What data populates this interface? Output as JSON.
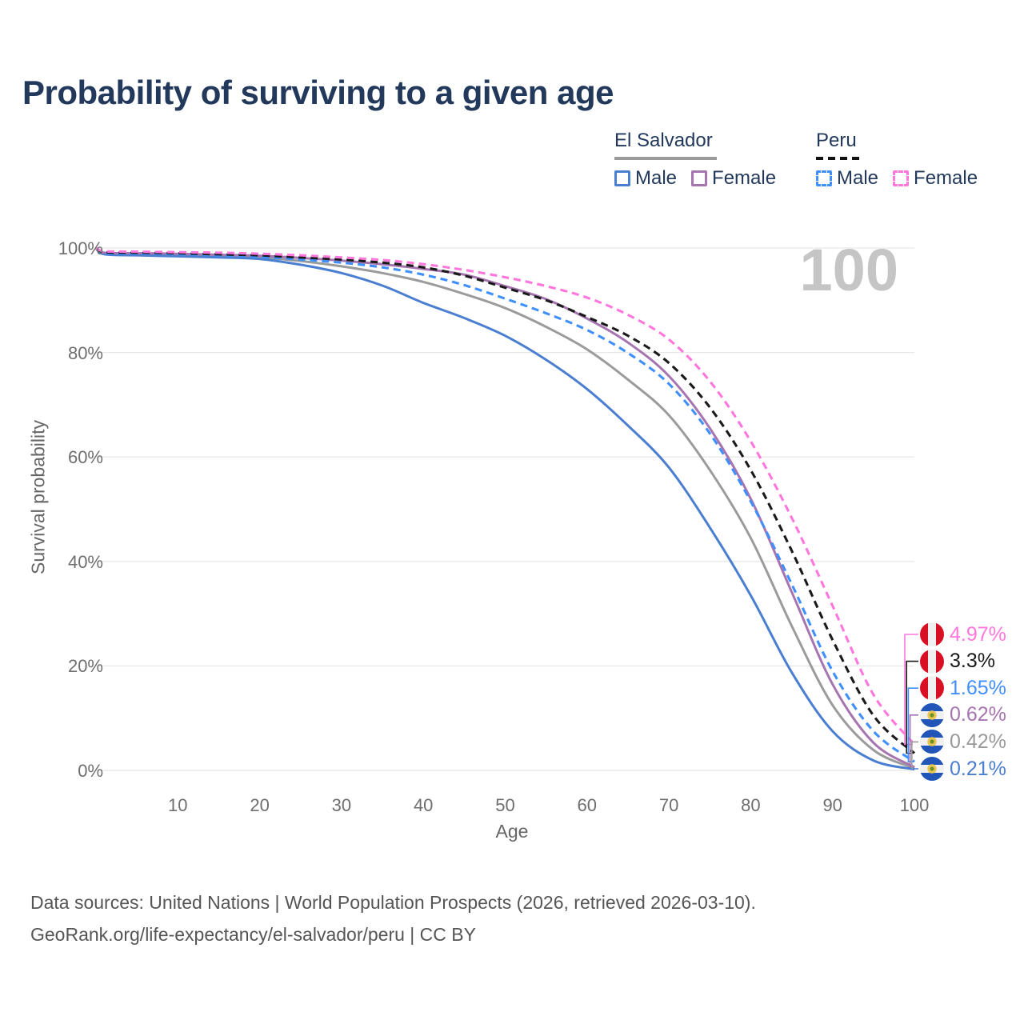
{
  "title": "Probability of surviving to a given age",
  "watermark_age": "100",
  "legend": {
    "groups": [
      {
        "label": "El Salvador",
        "line_style": "solid",
        "underline_color": "#9a9a9a",
        "items": [
          {
            "label": "Male",
            "color": "#4a7ed1",
            "dashed": false
          },
          {
            "label": "Female",
            "color": "#a674b0",
            "dashed": false
          }
        ]
      },
      {
        "label": "Peru",
        "line_style": "dashed",
        "underline_color": "#1a1a1a",
        "items": [
          {
            "label": "Male",
            "color": "#3f8fff",
            "dashed": true
          },
          {
            "label": "Female",
            "color": "#ff77dd",
            "dashed": true
          }
        ]
      }
    ]
  },
  "chart_data": {
    "type": "line",
    "title": "Probability of surviving to a given age",
    "xlabel": "Age",
    "ylabel": "Survival probability",
    "xlim": [
      0,
      100
    ],
    "ylim": [
      0,
      100
    ],
    "xticks": [
      10,
      20,
      30,
      40,
      50,
      60,
      70,
      80,
      90,
      100
    ],
    "yticks": [
      0,
      20,
      40,
      60,
      80,
      100
    ],
    "ytick_format": "percent",
    "grid": "horizontal",
    "legend_position": "top-right",
    "x": [
      0,
      1,
      5,
      10,
      15,
      20,
      25,
      30,
      35,
      40,
      45,
      50,
      55,
      60,
      65,
      70,
      75,
      80,
      85,
      90,
      95,
      100
    ],
    "series": [
      {
        "name": "El Salvador",
        "group": "El Salvador",
        "sex": "Both",
        "color": "#9b9b9b",
        "dashed": false,
        "flag": "el-salvador",
        "end_label": "0.42%",
        "end_label_color": "#999999",
        "values": [
          100,
          98.9,
          98.8,
          98.7,
          98.5,
          98.2,
          97.5,
          96.5,
          95.2,
          93.5,
          91.2,
          88.5,
          84.9,
          80.6,
          74.8,
          68.0,
          57.5,
          44.5,
          27.7,
          12.5,
          3.9,
          0.42
        ]
      },
      {
        "name": "El Salvador Male",
        "group": "El Salvador",
        "sex": "Male",
        "color": "#4a7ed1",
        "dashed": false,
        "flag": "el-salvador",
        "end_label": "0.21%",
        "end_label_color": "#4a7ed1",
        "values": [
          100,
          98.8,
          98.6,
          98.4,
          98.2,
          97.9,
          96.8,
          95.2,
          92.8,
          89.5,
          86.6,
          83.2,
          78.6,
          73.0,
          66.0,
          58.0,
          46.5,
          33.5,
          18.8,
          7.5,
          1.9,
          0.21
        ]
      },
      {
        "name": "El Salvador Female",
        "group": "El Salvador",
        "sex": "Female",
        "color": "#a674b0",
        "dashed": false,
        "flag": "el-salvador",
        "end_label": "0.62%",
        "end_label_color": "#a674b0",
        "values": [
          100,
          99.1,
          99.0,
          98.9,
          98.7,
          98.5,
          98.1,
          97.6,
          96.9,
          96.0,
          94.9,
          92.7,
          90.2,
          86.5,
          81.9,
          75.5,
          65.5,
          52.0,
          34.2,
          16.5,
          5.3,
          0.62
        ]
      },
      {
        "name": "Peru Male",
        "group": "Peru",
        "sex": "Male",
        "color": "#3f8fff",
        "dashed": true,
        "flag": "peru",
        "end_label": "1.65%",
        "end_label_color": "#3f8fff",
        "values": [
          100,
          99.0,
          98.9,
          98.8,
          98.6,
          98.3,
          97.8,
          97.2,
          96.3,
          94.9,
          92.9,
          90.3,
          87.5,
          84.3,
          79.9,
          74.0,
          64.5,
          51.5,
          35.7,
          19.0,
          7.5,
          1.65
        ]
      },
      {
        "name": "Peru",
        "group": "Peru",
        "sex": "Both",
        "color": "#1a1a1a",
        "dashed": true,
        "flag": "peru",
        "end_label": "3.3%",
        "end_label_color": "#1a1a1a",
        "values": [
          100,
          99.2,
          99.1,
          99.0,
          98.8,
          98.6,
          98.2,
          97.8,
          97.2,
          96.3,
          94.7,
          92.4,
          90.0,
          86.8,
          83.2,
          78.0,
          69.5,
          57.5,
          42.1,
          25.0,
          10.5,
          3.3
        ]
      },
      {
        "name": "Peru Female",
        "group": "Peru",
        "sex": "Female",
        "color": "#ff77dd",
        "dashed": true,
        "flag": "peru",
        "end_label": "4.97%",
        "end_label_color": "#ff77dd",
        "values": [
          100,
          99.4,
          99.3,
          99.2,
          99.1,
          98.9,
          98.6,
          98.2,
          97.7,
          96.9,
          95.8,
          94.4,
          92.7,
          90.5,
          87.2,
          82.5,
          74.5,
          63.0,
          48.4,
          31.5,
          14.5,
          4.97
        ]
      }
    ],
    "annotation_age_counter": "100"
  },
  "footer": {
    "line1": "Data sources: United Nations | World Population Prospects (2026, retrieved 2026-03-10).",
    "line2": "GeoRank.org/life-expectancy/el-salvador/peru | CC BY"
  }
}
